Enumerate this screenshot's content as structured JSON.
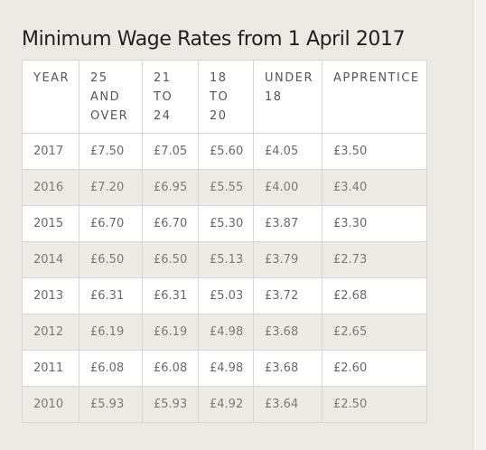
{
  "title": "Minimum Wage Rates from 1 April 2017",
  "columns": [
    [
      "YEAR"
    ],
    [
      "25",
      "AND",
      "OVER"
    ],
    [
      "21",
      "TO",
      "24"
    ],
    [
      "18",
      "TO",
      "20"
    ],
    [
      "UNDER",
      "18"
    ],
    [
      "APPRENTICE"
    ]
  ],
  "rows": [
    [
      "2017",
      "£7.50",
      "£7.05",
      "£5.60",
      "£4.05",
      "£3.50"
    ],
    [
      "2016",
      "£7.20",
      "£6.95",
      "£5.55",
      "£4.00",
      "£3.40"
    ],
    [
      "2015",
      "£6.70",
      "£6.70",
      "£5.30",
      "£3.87",
      "£3.30"
    ],
    [
      "2014",
      "£6.50",
      "£6.50",
      "£5.13",
      "£3.79",
      "£2.73"
    ],
    [
      "2013",
      "£6.31",
      "£6.31",
      "£5.03",
      "£3.72",
      "£2.68"
    ],
    [
      "2012",
      "£6.19",
      "£6.19",
      "£4.98",
      "£3.68",
      "£2.65"
    ],
    [
      "2011",
      "£6.08",
      "£6.08",
      "£4.98",
      "£3.68",
      "£2.60"
    ],
    [
      "2010",
      "£5.93",
      "£5.93",
      "£4.92",
      "£3.64",
      "£2.50"
    ]
  ]
}
